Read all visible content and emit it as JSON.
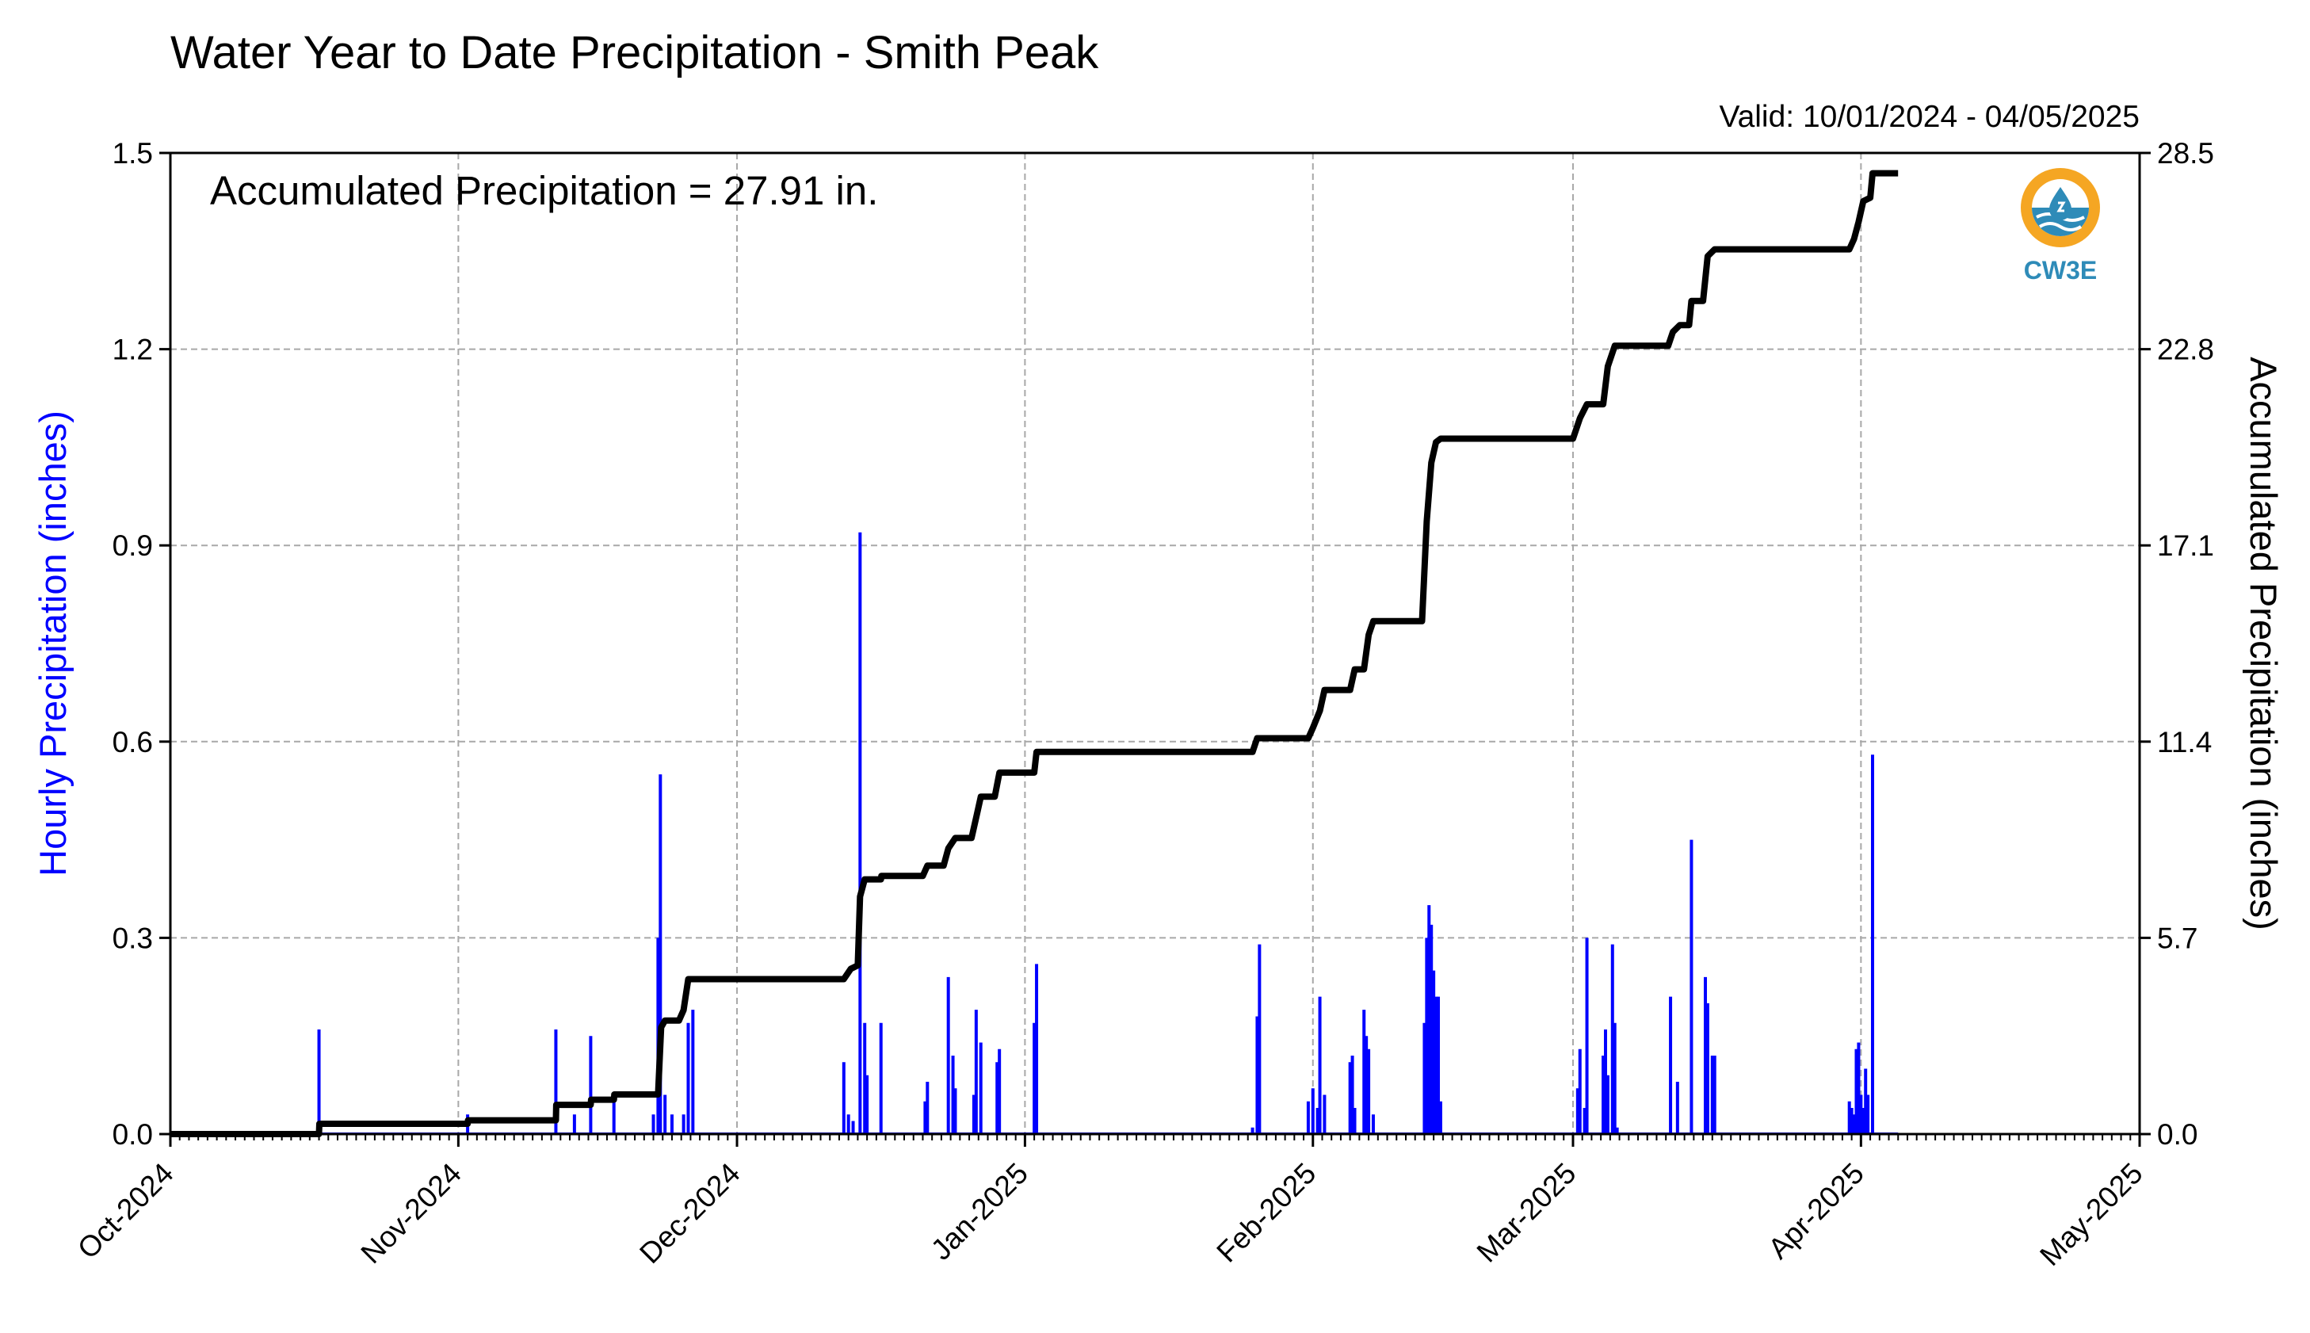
{
  "chart_data": {
    "type": "bar",
    "title": "Water Year to Date Precipitation - Smith Peak",
    "subtitle": "Valid: 10/01/2024 - 04/05/2025",
    "annotation": "Accumulated Precipitation = 27.91 in.",
    "ylabel": "Hourly Precipitation (inches)",
    "ylabel_right": "Accumulated Precipitation (inches)",
    "ylim": [
      0,
      1.5
    ],
    "ylim_right": [
      0,
      28.5
    ],
    "yticks": [
      "0.0",
      "0.3",
      "0.6",
      "0.9",
      "1.2",
      "1.5"
    ],
    "yticks_right": [
      "0.0",
      "5.7",
      "11.4",
      "17.1",
      "22.8",
      "28.5"
    ],
    "xlim": [
      "2024-10-01",
      "2025-05-01"
    ],
    "xticks": [
      {
        "date": "2024-10-01",
        "label": "Oct-2024"
      },
      {
        "date": "2024-11-01",
        "label": "Nov-2024"
      },
      {
        "date": "2024-12-01",
        "label": "Dec-2024"
      },
      {
        "date": "2025-01-01",
        "label": "Jan-2025"
      },
      {
        "date": "2025-02-01",
        "label": "Feb-2025"
      },
      {
        "date": "2025-03-01",
        "label": "Mar-2025"
      },
      {
        "date": "2025-04-01",
        "label": "Apr-2025"
      },
      {
        "date": "2025-05-01",
        "label": "May-2025"
      }
    ],
    "grid": true,
    "colors": {
      "hourly": "#0000ff",
      "accumulated": "#000000",
      "grid": "#a8a8a8"
    },
    "series": [
      {
        "name": "Hourly Precipitation",
        "type": "bar",
        "axis": "left",
        "points": [
          [
            "2024-10-17T00:00",
            0.16
          ],
          [
            "2024-11-02T00:00",
            0.03
          ],
          [
            "2024-11-11T12:00",
            0.16
          ],
          [
            "2024-11-13T12:00",
            0.03
          ],
          [
            "2024-11-15T06:00",
            0.15
          ],
          [
            "2024-11-17T18:00",
            0.06
          ],
          [
            "2024-11-22T00:00",
            0.03
          ],
          [
            "2024-11-22T12:00",
            0.3
          ],
          [
            "2024-11-22T18:00",
            0.55
          ],
          [
            "2024-11-23T06:00",
            0.06
          ],
          [
            "2024-11-24T00:00",
            0.03
          ],
          [
            "2024-11-25T06:00",
            0.03
          ],
          [
            "2024-11-25T18:00",
            0.17
          ],
          [
            "2024-11-26T06:00",
            0.19
          ],
          [
            "2024-12-12T12:00",
            0.11
          ],
          [
            "2024-12-13T00:00",
            0.03
          ],
          [
            "2024-12-13T12:00",
            0.02
          ],
          [
            "2024-12-14T06:00",
            0.92
          ],
          [
            "2024-12-14T18:00",
            0.17
          ],
          [
            "2024-12-15T00:00",
            0.09
          ],
          [
            "2024-12-16T12:00",
            0.17
          ],
          [
            "2024-12-21T06:00",
            0.05
          ],
          [
            "2024-12-21T12:00",
            0.08
          ],
          [
            "2024-12-23T18:00",
            0.24
          ],
          [
            "2024-12-24T06:00",
            0.12
          ],
          [
            "2024-12-24T12:00",
            0.07
          ],
          [
            "2024-12-26T12:00",
            0.06
          ],
          [
            "2024-12-26T18:00",
            0.19
          ],
          [
            "2024-12-27T06:00",
            0.14
          ],
          [
            "2024-12-29T00:00",
            0.11
          ],
          [
            "2024-12-29T06:00",
            0.13
          ],
          [
            "2025-01-02T00:00",
            0.17
          ],
          [
            "2025-01-02T06:00",
            0.26
          ],
          [
            "2025-01-25T12:00",
            0.01
          ],
          [
            "2025-01-26T00:00",
            0.18
          ],
          [
            "2025-01-26T06:00",
            0.29
          ],
          [
            "2025-01-31T12:00",
            0.05
          ],
          [
            "2025-02-01T00:00",
            0.07
          ],
          [
            "2025-02-01T12:00",
            0.04
          ],
          [
            "2025-02-01T18:00",
            0.21
          ],
          [
            "2025-02-02T06:00",
            0.06
          ],
          [
            "2025-02-05T00:00",
            0.11
          ],
          [
            "2025-02-05T06:00",
            0.12
          ],
          [
            "2025-02-05T12:00",
            0.04
          ],
          [
            "2025-02-06T12:00",
            0.19
          ],
          [
            "2025-02-06T18:00",
            0.15
          ],
          [
            "2025-02-07T00:00",
            0.13
          ],
          [
            "2025-02-07T12:00",
            0.03
          ],
          [
            "2025-02-13T00:00",
            0.17
          ],
          [
            "2025-02-13T06:00",
            0.3
          ],
          [
            "2025-02-13T12:00",
            0.35
          ],
          [
            "2025-02-13T18:00",
            0.32
          ],
          [
            "2025-02-14T00:00",
            0.25
          ],
          [
            "2025-02-14T06:00",
            0.21
          ],
          [
            "2025-02-14T12:00",
            0.21
          ],
          [
            "2025-02-14T18:00",
            0.05
          ],
          [
            "2025-03-01T12:00",
            0.07
          ],
          [
            "2025-03-01T18:00",
            0.13
          ],
          [
            "2025-03-02T06:00",
            0.04
          ],
          [
            "2025-03-02T12:00",
            0.3
          ],
          [
            "2025-03-04T06:00",
            0.12
          ],
          [
            "2025-03-04T12:00",
            0.16
          ],
          [
            "2025-03-04T18:00",
            0.09
          ],
          [
            "2025-03-05T06:00",
            0.29
          ],
          [
            "2025-03-05T12:00",
            0.17
          ],
          [
            "2025-03-05T18:00",
            0.01
          ],
          [
            "2025-03-11T12:00",
            0.21
          ],
          [
            "2025-03-12T06:00",
            0.08
          ],
          [
            "2025-03-13T18:00",
            0.45
          ],
          [
            "2025-03-15T06:00",
            0.24
          ],
          [
            "2025-03-15T12:00",
            0.2
          ],
          [
            "2025-03-16T00:00",
            0.12
          ],
          [
            "2025-03-16T06:00",
            0.12
          ],
          [
            "2025-03-30T18:00",
            0.05
          ],
          [
            "2025-03-31T00:00",
            0.04
          ],
          [
            "2025-03-31T06:00",
            0.03
          ],
          [
            "2025-03-31T12:00",
            0.13
          ],
          [
            "2025-03-31T18:00",
            0.14
          ],
          [
            "2025-04-01T00:00",
            0.06
          ],
          [
            "2025-04-01T06:00",
            0.04
          ],
          [
            "2025-04-01T12:00",
            0.1
          ],
          [
            "2025-04-01T18:00",
            0.06
          ],
          [
            "2025-04-02T06:00",
            0.58
          ]
        ]
      },
      {
        "name": "Accumulated Precipitation",
        "type": "line",
        "axis": "right",
        "points": [
          [
            "2024-10-01T00:00",
            0.0
          ],
          [
            "2024-10-17T00:00",
            0.0
          ],
          [
            "2024-10-17T01:00",
            0.3
          ],
          [
            "2024-11-02T00:00",
            0.3
          ],
          [
            "2024-11-02T01:00",
            0.4
          ],
          [
            "2024-11-11T12:00",
            0.4
          ],
          [
            "2024-11-11T13:00",
            0.85
          ],
          [
            "2024-11-15T06:00",
            0.85
          ],
          [
            "2024-11-15T07:00",
            1.0
          ],
          [
            "2024-11-17T18:00",
            1.0
          ],
          [
            "2024-11-17T19:00",
            1.15
          ],
          [
            "2024-11-22T12:00",
            1.15
          ],
          [
            "2024-11-22T20:00",
            3.1
          ],
          [
            "2024-11-23T06:00",
            3.3
          ],
          [
            "2024-11-24T18:00",
            3.3
          ],
          [
            "2024-11-25T06:00",
            3.6
          ],
          [
            "2024-11-25T18:00",
            4.5
          ],
          [
            "2024-12-12T12:00",
            4.5
          ],
          [
            "2024-12-13T06:00",
            4.8
          ],
          [
            "2024-12-14T00:00",
            4.9
          ],
          [
            "2024-12-14T06:00",
            6.9
          ],
          [
            "2024-12-14T18:00",
            7.4
          ],
          [
            "2024-12-16T12:00",
            7.4
          ],
          [
            "2024-12-16T13:00",
            7.5
          ],
          [
            "2024-12-21T00:00",
            7.5
          ],
          [
            "2024-12-21T12:00",
            7.8
          ],
          [
            "2024-12-23T06:00",
            7.8
          ],
          [
            "2024-12-23T18:00",
            8.3
          ],
          [
            "2024-12-24T12:00",
            8.6
          ],
          [
            "2024-12-26T06:00",
            8.6
          ],
          [
            "2024-12-26T18:00",
            9.2
          ],
          [
            "2024-12-27T06:00",
            9.8
          ],
          [
            "2024-12-28T18:00",
            9.8
          ],
          [
            "2024-12-29T06:00",
            10.5
          ],
          [
            "2025-01-02T00:00",
            10.5
          ],
          [
            "2025-01-02T06:00",
            11.1
          ],
          [
            "2025-01-25T12:00",
            11.1
          ],
          [
            "2025-01-26T00:00",
            11.5
          ],
          [
            "2025-01-31T12:00",
            11.5
          ],
          [
            "2025-02-01T00:00",
            11.8
          ],
          [
            "2025-02-01T18:00",
            12.3
          ],
          [
            "2025-02-02T06:00",
            12.9
          ],
          [
            "2025-02-05T00:00",
            12.9
          ],
          [
            "2025-02-05T12:00",
            13.5
          ],
          [
            "2025-02-06T12:00",
            13.5
          ],
          [
            "2025-02-07T00:00",
            14.5
          ],
          [
            "2025-02-07T12:00",
            14.9
          ],
          [
            "2025-02-12T18:00",
            14.9
          ],
          [
            "2025-02-13T06:00",
            17.8
          ],
          [
            "2025-02-13T18:00",
            19.5
          ],
          [
            "2025-02-14T06:00",
            20.1
          ],
          [
            "2025-02-14T18:00",
            20.2
          ],
          [
            "2025-03-01T00:00",
            20.2
          ],
          [
            "2025-03-01T18:00",
            20.8
          ],
          [
            "2025-03-02T12:00",
            21.2
          ],
          [
            "2025-03-04T06:00",
            21.2
          ],
          [
            "2025-03-04T18:00",
            22.3
          ],
          [
            "2025-03-05T12:00",
            22.9
          ],
          [
            "2025-03-11T06:00",
            22.9
          ],
          [
            "2025-03-11T18:00",
            23.3
          ],
          [
            "2025-03-12T12:00",
            23.5
          ],
          [
            "2025-03-13T12:00",
            23.5
          ],
          [
            "2025-03-13T18:00",
            24.2
          ],
          [
            "2025-03-15T00:00",
            24.2
          ],
          [
            "2025-03-15T12:00",
            25.5
          ],
          [
            "2025-03-16T06:00",
            25.7
          ],
          [
            "2025-03-30T18:00",
            25.7
          ],
          [
            "2025-03-31T06:00",
            26.0
          ],
          [
            "2025-03-31T18:00",
            26.5
          ],
          [
            "2025-04-01T06:00",
            27.1
          ],
          [
            "2025-04-02T00:00",
            27.2
          ],
          [
            "2025-04-02T06:00",
            27.91
          ],
          [
            "2025-04-05T00:00",
            27.91
          ]
        ]
      }
    ]
  },
  "logo": {
    "text": "CW3E",
    "icon": "water-drop-wave-icon",
    "colors": {
      "ring": "#f5a623",
      "water": "#2e8bb8"
    }
  }
}
